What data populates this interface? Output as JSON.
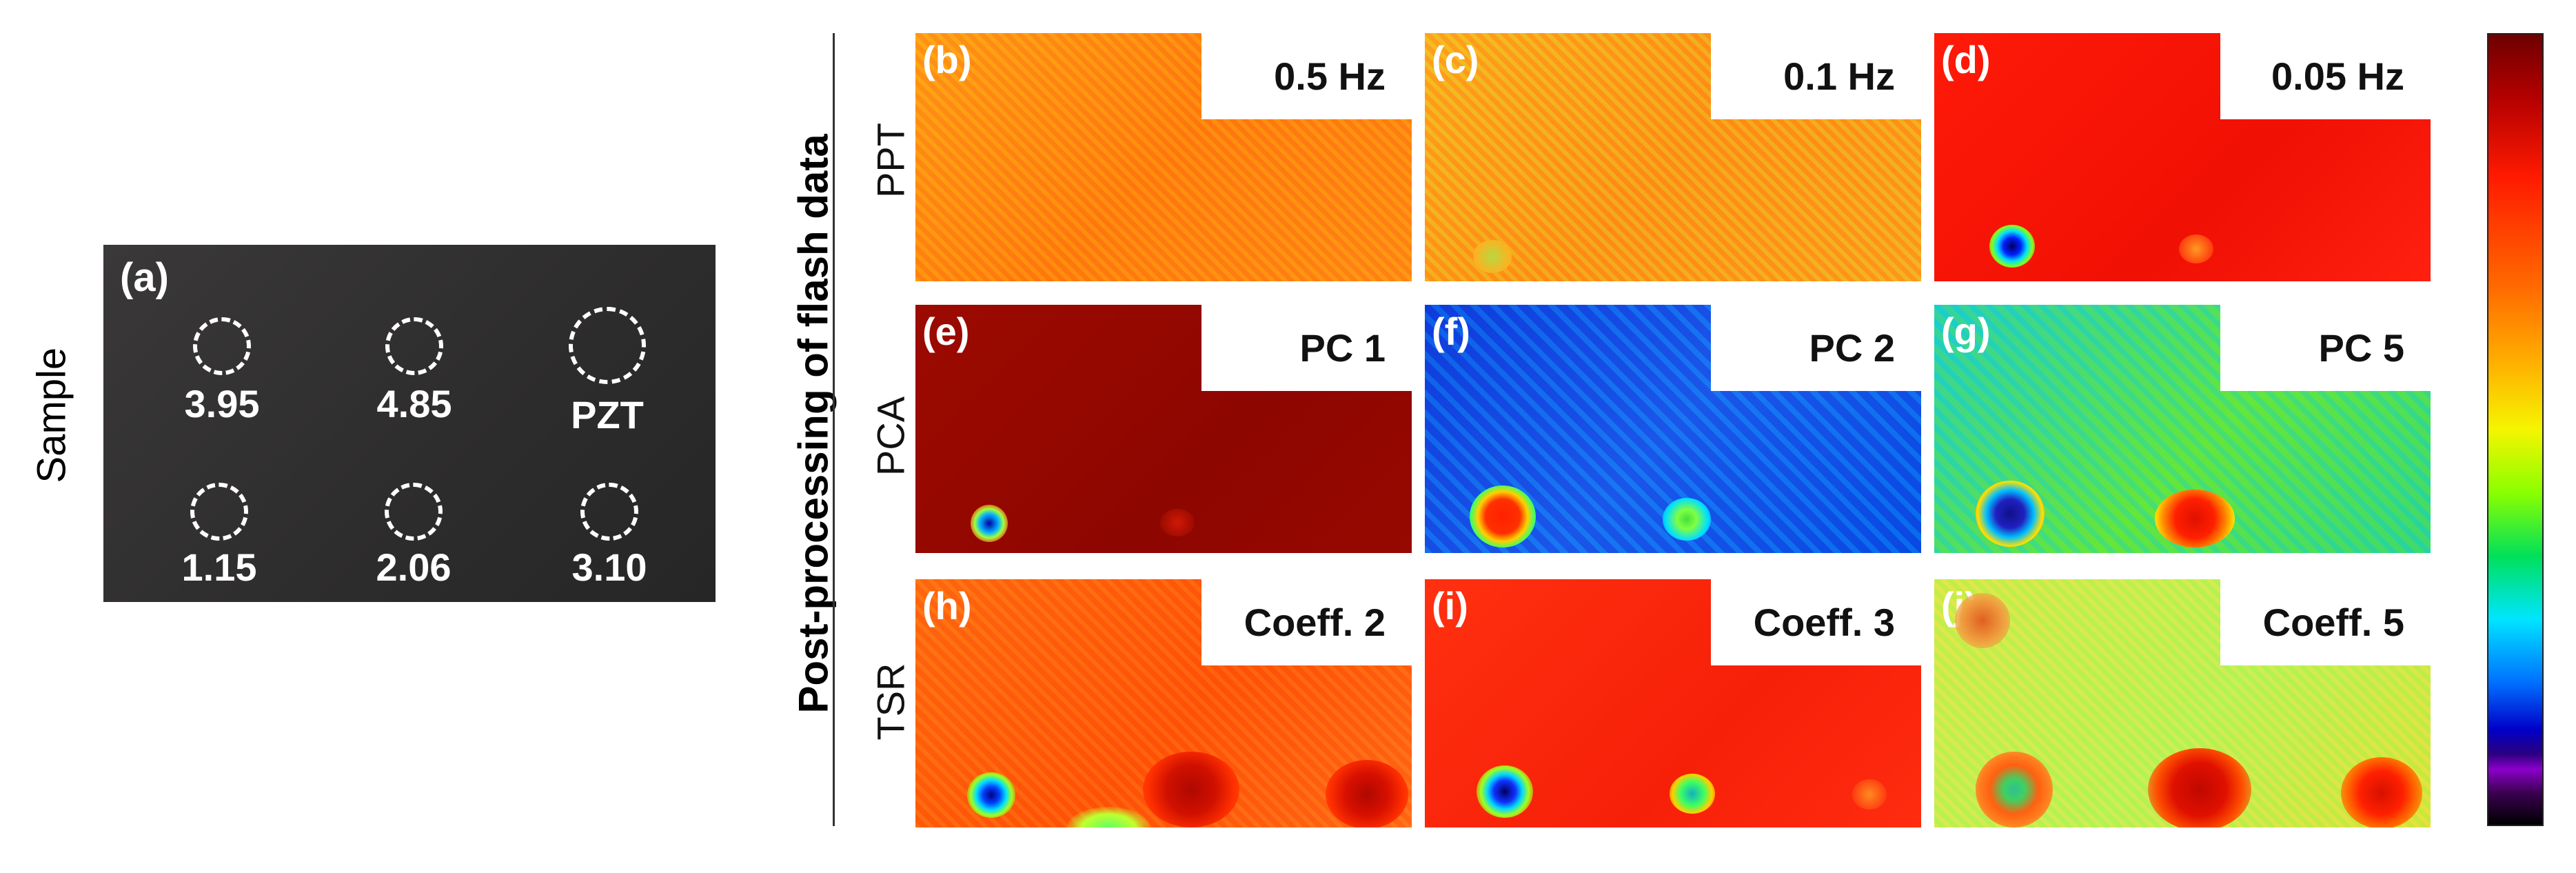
{
  "sample_label": "Sample",
  "sample_photo": {
    "panel_tag": "(a)",
    "holes": [
      "3.95",
      "4.85",
      "PZT",
      "1.15",
      "2.06",
      "3.10"
    ]
  },
  "side_title": "Post-processing of flash data",
  "rows": [
    {
      "label": "PPT",
      "panels": [
        {
          "letter": "(b)",
          "param": "0.5 Hz"
        },
        {
          "letter": "(c)",
          "param": "0.1 Hz"
        },
        {
          "letter": "(d)",
          "param": "0.05 Hz"
        }
      ]
    },
    {
      "label": "PCA",
      "panels": [
        {
          "letter": "(e)",
          "param": "PC 1"
        },
        {
          "letter": "(f)",
          "param": "PC 2"
        },
        {
          "letter": "(g)",
          "param": "PC 5"
        }
      ]
    },
    {
      "label": "TSR",
      "panels": [
        {
          "letter": "(h)",
          "param": "Coeff. 2"
        },
        {
          "letter": "(i)",
          "param": "Coeff. 3"
        },
        {
          "letter": "(j)",
          "param": "Coeff. 5"
        }
      ]
    }
  ],
  "colors": {
    "notch": "#ffffff",
    "text": "#111111"
  }
}
